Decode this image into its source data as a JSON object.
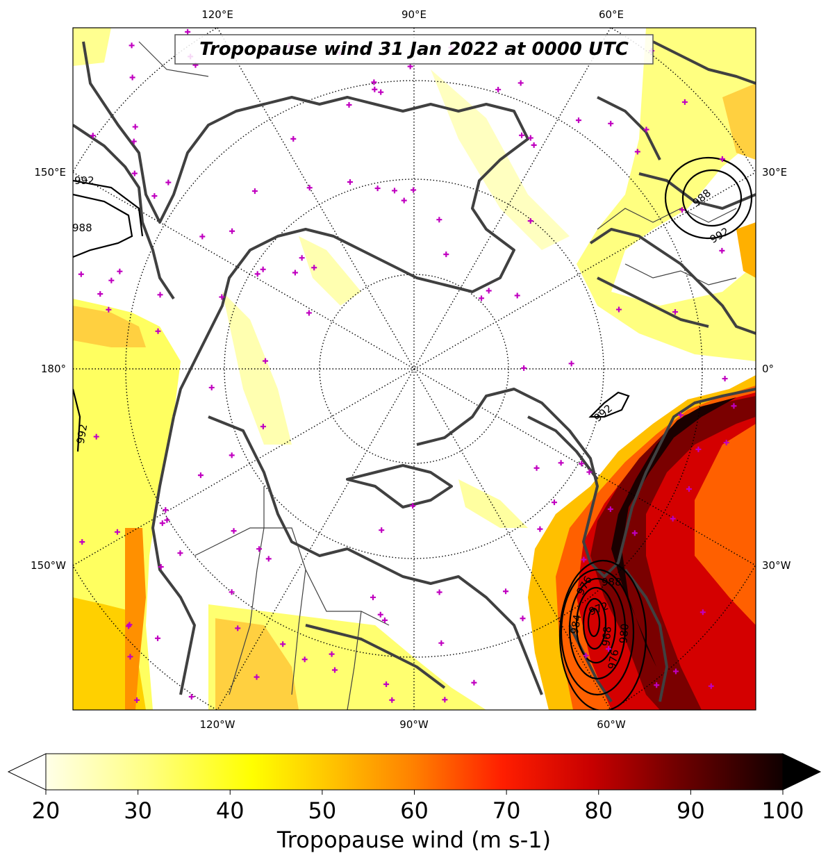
{
  "title": "Tropopause wind 31 Jan 2022 at 0000 UTC",
  "lon_labels": {
    "top": [
      "120°E",
      "90°E",
      "60°E"
    ],
    "bottom": [
      "120°W",
      "90°W",
      "60°W"
    ],
    "left": [
      "150°E",
      "180°",
      "150°W"
    ],
    "right": [
      "30°E",
      "0°",
      "30°W"
    ]
  },
  "pressure_contour_labels": [
    "992",
    "988",
    "992",
    "988",
    "992",
    "992",
    "988",
    "984",
    "976",
    "972",
    "968",
    "980",
    "976"
  ],
  "colorbar": {
    "label": "Tropopause wind (m s-1)",
    "ticks": [
      "20",
      "30",
      "40",
      "50",
      "60",
      "70",
      "80",
      "90",
      "100"
    ],
    "min": 20,
    "max": 100,
    "extend": "both"
  },
  "colors": {
    "wind_cmap": [
      "#ffffe0",
      "#ffff00",
      "#ffd200",
      "#ff8c00",
      "#ff3c00",
      "#d20000",
      "#8b0000",
      "#3a0000",
      "#000000"
    ],
    "coastline": "#404040",
    "station_marker": "#c000c0",
    "contour": "#000000"
  }
}
